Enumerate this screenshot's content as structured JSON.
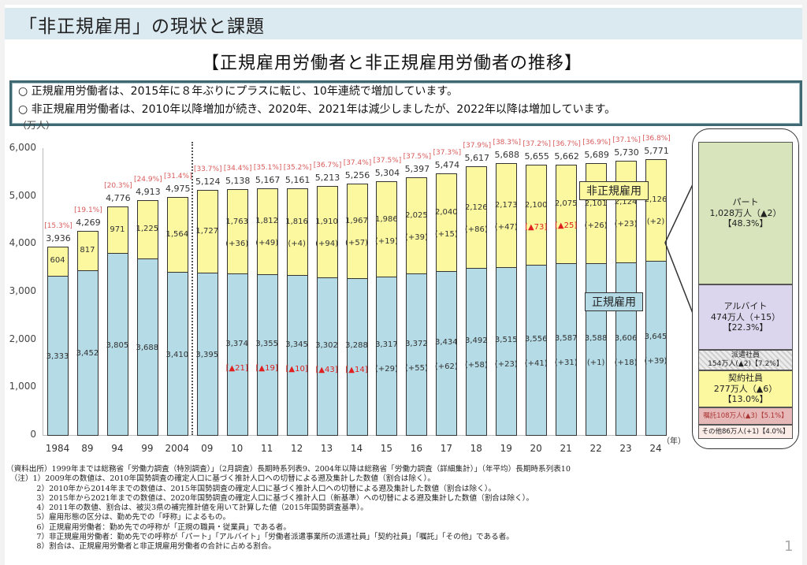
{
  "header": {
    "title": "「非正規雇用」の現状と課題"
  },
  "chart_title": "【正規雇用労働者と非正規雇用労働者の推移】",
  "summary": [
    "○ 正規雇用労働者は、2015年に８年ぶりにプラスに転じ、10年連続で増加しています。",
    "○ 非正規雇用労働者は、2010年以降増加が続き、2020年、2021年は減少しましたが、2022年以降は増加しています。"
  ],
  "chart_data": {
    "type": "bar",
    "stacked": true,
    "title": "【正規雇用労働者と非正規雇用労働者の推移】",
    "ylabel": "（万人）",
    "xlabel": "（年）",
    "ylim": [
      0,
      6000
    ],
    "yticks": [
      "0",
      "1,000",
      "2,000",
      "3,000",
      "4,000",
      "5,000",
      "6,000"
    ],
    "categories": [
      "1984",
      "89",
      "94",
      "99",
      "2004",
      "09",
      "10",
      "11",
      "12",
      "13",
      "14",
      "15",
      "16",
      "17",
      "18",
      "19",
      "20",
      "21",
      "22",
      "23",
      "24"
    ],
    "series": [
      {
        "name": "正規雇用",
        "color": "#b4dbe6",
        "values": [
          3333,
          3452,
          3805,
          3688,
          3410,
          3395,
          3374,
          3355,
          3345,
          3302,
          3288,
          3317,
          3372,
          3434,
          3492,
          3515,
          3556,
          3587,
          3588,
          3606,
          3645
        ],
        "labels": [
          "3,333",
          "3,452",
          "3,805",
          "3,688",
          "3,410",
          "3,395",
          "3,374",
          "3,355",
          "3,345",
          "3,302",
          "3,288",
          "3,317",
          "3,372",
          "3,434",
          "3,492",
          "3,515",
          "3,556",
          "3,587",
          "3,588",
          "3,606",
          "3,645"
        ],
        "changes": [
          "",
          "",
          "",
          "",
          "",
          "",
          "▲21",
          "▲19",
          "▲10",
          "▲43",
          "▲14",
          "(+29)",
          "(+55)",
          "(+62)",
          "(+58)",
          "(+23)",
          "(+41)",
          "(+31)",
          "(+1)",
          "(+18)",
          "(+39)"
        ]
      },
      {
        "name": "非正規雇用",
        "color": "#fbf8a0",
        "values": [
          604,
          817,
          971,
          1225,
          1564,
          1727,
          1763,
          1812,
          1816,
          1910,
          1967,
          1986,
          2025,
          2040,
          2126,
          2173,
          2100,
          2075,
          2101,
          2124,
          2126
        ],
        "labels": [
          "604",
          "817",
          "971",
          "1,225",
          "1,564",
          "1,727",
          "1,763",
          "1,812",
          "1,816",
          "1,910",
          "1,967",
          "1,986",
          "2,025",
          "2,040",
          "2,126",
          "2,173",
          "2,100",
          "2,075",
          "2,101",
          "2,124",
          "2,126"
        ],
        "changes": [
          "",
          "",
          "",
          "",
          "",
          "",
          "(+36)",
          "(+49)",
          "(+4)",
          "(+94)",
          "(+57)",
          "(+19)",
          "(+39)",
          "(+15)",
          "(+86)",
          "(+47)",
          "▲73",
          "▲25",
          "(+26)",
          "(+23)",
          "(+2)"
        ]
      }
    ],
    "totals": [
      "3,936",
      "4,269",
      "4,776",
      "4,913",
      "4,975",
      "5,124",
      "5,138",
      "5,167",
      "5,161",
      "5,213",
      "5,256",
      "5,304",
      "5,397",
      "5,474",
      "5,617",
      "5,688",
      "5,655",
      "5,662",
      "5,689",
      "5,730",
      "5,771"
    ],
    "nonregular_share": [
      "[15.3%]",
      "[19.1%]",
      "[20.3%]",
      "[24.9%]",
      "[31.4%]",
      "[33.7%]",
      "[34.4%]",
      "[35.1%]",
      "[35.2%]",
      "[36.7%]",
      "[37.4%]",
      "[37.5%]",
      "[37.5%]",
      "[37.3%]",
      "[37.9%]",
      "[38.3%]",
      "[37.2%]",
      "[36.7%]",
      "[36.9%]",
      "[37.1%]",
      "[36.8%]"
    ],
    "legend": {
      "nonregular": "非正規雇用",
      "regular": "正規雇用"
    },
    "breakdown_2024": [
      {
        "name": "パート",
        "value": "1,028万人（▲2）",
        "share": "【48.3%】",
        "color": "#d8e4bc"
      },
      {
        "name": "アルバイト",
        "value": "474万人（+15）",
        "share": "【22.3%】",
        "color": "#dcd5ee"
      },
      {
        "name": "派遣社員",
        "value": "154万人(▲2)【7.2%】",
        "share": "",
        "color": "#e5e5e5"
      },
      {
        "name": "契約社員",
        "value": "277万人（▲6）",
        "share": "【13.0%】",
        "color": "#fbf8a0"
      },
      {
        "name": "嘱託",
        "value": "嘱託108万人(▲3)【5.1%】",
        "share": "",
        "color": "#e6b8b7"
      },
      {
        "name": "その他",
        "value": "その他86万人(+1)【4.0%】",
        "share": "",
        "color": "#fbece8"
      }
    ]
  },
  "notes": [
    "（資料出所）1999年までは総務省「労働力調査（特別調査）」（2月調査）長期時系列表9、2004年以降は総務省「労働力調査（詳細集計）」（年平均）長期時系列表10",
    "　（注）1）2009年の数値は、2010年国勢調査の確定人口に基づく推計人口への切替による遡及集計した数値（割合は除く）。",
    "　　　　2）2010年から2014年までの数値は、2015年国勢調査の確定人口に基づく推計人口への切替による遡及集計した数値（割合は除く）。",
    "　　　　3）2015年から2021年までの数値は、2020年国勢調査の確定人口に基づく推計人口（新基準）への切替による遡及集計した数値（割合は除く）。",
    "　　　　4）2011年の数値、割合は、被災3県の補完推計値を用いて計算した値（2015年国勢調査基準）。",
    "　　　　5）雇用形態の区分は、勤め先での「呼称」によるもの。",
    "　　　　6）正規雇用労働者：勤め先での呼称が「正規の職員・従業員」である者。",
    "　　　　7）非正規雇用労働者：勤め先での呼称が「パート」「アルバイト」「労働者派遣事業所の派遣社員」「契約社員」「嘱託」「その他」である者。",
    "　　　　8）割合は、正規雇用労働者と非正規雇用労働者の合計に占める割合。"
  ],
  "page_number": "1"
}
